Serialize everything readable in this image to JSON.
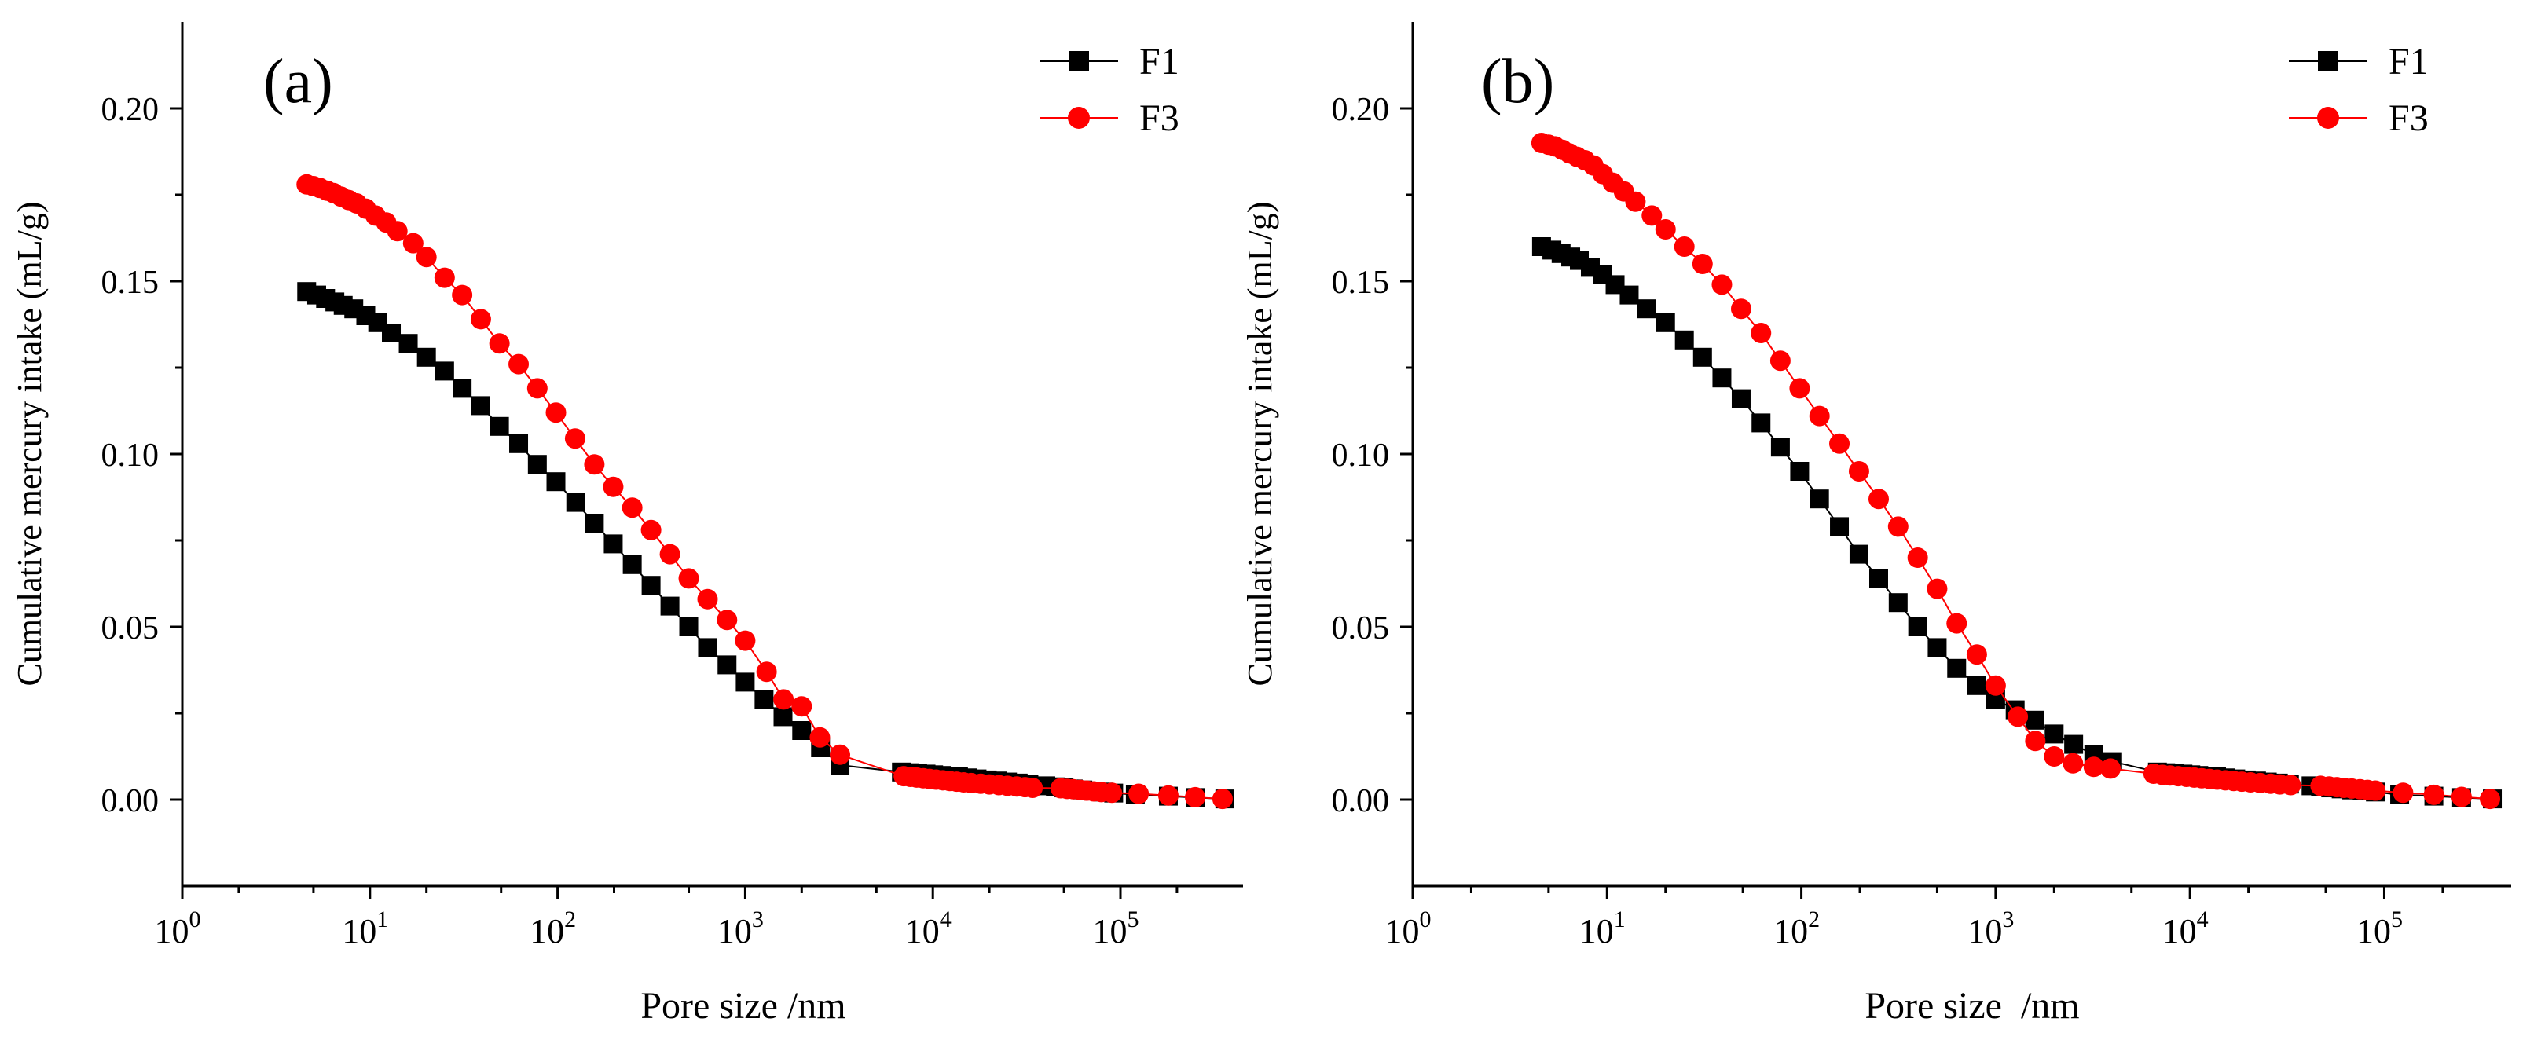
{
  "colors": {
    "F1": "#000000",
    "F3": "#ff0000",
    "axis": "#000000"
  },
  "chart_data": [
    {
      "type": "scatter",
      "panel_label": "(a)",
      "xlabel": "Pore size /nm",
      "ylabel": "Cumulative mercury intake (mL/g)",
      "xscale": "log",
      "xlim": [
        1,
        450000
      ],
      "ylim": [
        -0.025,
        0.225
      ],
      "yticks": [
        "0.00",
        "0.05",
        "0.10",
        "0.15",
        "0.20"
      ],
      "xticks": [
        {
          "base": "10",
          "exp": "0"
        },
        {
          "base": "10",
          "exp": "1"
        },
        {
          "base": "10",
          "exp": "2"
        },
        {
          "base": "10",
          "exp": "3"
        },
        {
          "base": "10",
          "exp": "4"
        },
        {
          "base": "10",
          "exp": "5"
        }
      ],
      "legend": {
        "position": "top-right",
        "entries": [
          "F1",
          "F3"
        ]
      },
      "series": [
        {
          "name": "F1",
          "x": [
            4.6,
            5.2,
            5.8,
            6.5,
            7.2,
            8.2,
            9.5,
            11,
            13,
            16,
            20,
            25,
            31,
            39,
            49,
            62,
            78,
            98,
            125,
            157,
            198,
            250,
            315,
            397,
            500,
            630,
            800,
            1000,
            1260,
            1590,
            2000,
            2520,
            3200,
            6800,
            7500,
            8300,
            9200,
            10100,
            11100,
            12300,
            13700,
            15300,
            17200,
            19500,
            22000,
            25000,
            28500,
            32500,
            40000,
            45000,
            50000,
            56000,
            63000,
            71000,
            81000,
            92000,
            120000,
            180000,
            250000,
            360000
          ],
          "values": [
            0.147,
            0.146,
            0.145,
            0.144,
            0.143,
            0.142,
            0.14,
            0.138,
            0.135,
            0.132,
            0.128,
            0.124,
            0.119,
            0.114,
            0.108,
            0.103,
            0.097,
            0.092,
            0.086,
            0.08,
            0.074,
            0.068,
            0.062,
            0.056,
            0.05,
            0.044,
            0.039,
            0.034,
            0.029,
            0.024,
            0.02,
            0.015,
            0.01,
            0.008,
            0.0078,
            0.0076,
            0.0074,
            0.0072,
            0.007,
            0.0068,
            0.0066,
            0.0063,
            0.006,
            0.0057,
            0.0054,
            0.0051,
            0.0048,
            0.0045,
            0.004,
            0.0037,
            0.0034,
            0.0031,
            0.0028,
            0.0025,
            0.0022,
            0.0019,
            0.0014,
            0.001,
            0.0006,
            0.0002
          ]
        },
        {
          "name": "F3",
          "x": [
            4.6,
            5.0,
            5.4,
            5.9,
            6.4,
            7.0,
            7.7,
            8.5,
            9.5,
            10.7,
            12.2,
            14,
            17,
            20,
            25,
            31,
            39,
            49,
            62,
            78,
            98,
            124,
            157,
            198,
            250,
            315,
            397,
            500,
            630,
            800,
            1000,
            1300,
            1600,
            2000,
            2500,
            3200,
            7000,
            7600,
            8200,
            8900,
            9600,
            10400,
            11300,
            12300,
            13400,
            14600,
            16000,
            18000,
            20000,
            22500,
            25000,
            28000,
            31000,
            34000,
            48000,
            52000,
            56000,
            61000,
            66000,
            72000,
            79000,
            90000,
            125000,
            180000,
            250000,
            350000
          ],
          "values": [
            0.178,
            0.1775,
            0.177,
            0.1762,
            0.1755,
            0.1745,
            0.1735,
            0.1725,
            0.171,
            0.169,
            0.167,
            0.1645,
            0.161,
            0.157,
            0.151,
            0.146,
            0.139,
            0.132,
            0.126,
            0.119,
            0.112,
            0.1045,
            0.097,
            0.0905,
            0.0845,
            0.078,
            0.071,
            0.064,
            0.058,
            0.052,
            0.046,
            0.037,
            0.029,
            0.027,
            0.018,
            0.013,
            0.0068,
            0.0066,
            0.0064,
            0.0062,
            0.006,
            0.0058,
            0.0056,
            0.0054,
            0.0052,
            0.005,
            0.0048,
            0.0046,
            0.0044,
            0.0042,
            0.004,
            0.0038,
            0.0036,
            0.0034,
            0.0033,
            0.0031,
            0.003,
            0.0028,
            0.0026,
            0.0024,
            0.0022,
            0.002,
            0.0017,
            0.0012,
            0.0007,
            0.0002
          ]
        }
      ]
    },
    {
      "type": "scatter",
      "panel_label": "(b)",
      "xlabel": "Pore size  /nm",
      "ylabel": "Cumulative mercury intake (mL/g)",
      "xscale": "log",
      "xlim": [
        1,
        450000
      ],
      "ylim": [
        -0.025,
        0.225
      ],
      "yticks": [
        "0.00",
        "0.05",
        "0.10",
        "0.15",
        "0.20"
      ],
      "xticks": [
        {
          "base": "10",
          "exp": "0"
        },
        {
          "base": "10",
          "exp": "1"
        },
        {
          "base": "10",
          "exp": "2"
        },
        {
          "base": "10",
          "exp": "3"
        },
        {
          "base": "10",
          "exp": "4"
        },
        {
          "base": "10",
          "exp": "5"
        }
      ],
      "legend": {
        "position": "top-right",
        "entries": [
          "F1",
          "F3"
        ]
      },
      "series": [
        {
          "name": "F1",
          "x": [
            4.6,
            5.2,
            5.8,
            6.5,
            7.2,
            8.2,
            9.5,
            11,
            13,
            16,
            20,
            25,
            31,
            39,
            49,
            62,
            78,
            98,
            124,
            157,
            198,
            250,
            315,
            397,
            500,
            630,
            800,
            1000,
            1260,
            1590,
            2000,
            2520,
            3200,
            4000,
            6800,
            7500,
            8300,
            9200,
            10100,
            11100,
            12300,
            13700,
            15300,
            17200,
            19500,
            22000,
            25000,
            28500,
            32500,
            42000,
            47000,
            53000,
            60000,
            68000,
            77000,
            90000,
            120000,
            180000,
            250000,
            360000
          ],
          "values": [
            0.16,
            0.159,
            0.158,
            0.157,
            0.156,
            0.154,
            0.152,
            0.149,
            0.146,
            0.142,
            0.138,
            0.133,
            0.128,
            0.122,
            0.116,
            0.109,
            0.102,
            0.095,
            0.087,
            0.079,
            0.071,
            0.064,
            0.057,
            0.05,
            0.044,
            0.038,
            0.033,
            0.029,
            0.026,
            0.023,
            0.019,
            0.016,
            0.013,
            0.011,
            0.008,
            0.0078,
            0.0076,
            0.0074,
            0.0072,
            0.007,
            0.0068,
            0.0066,
            0.0063,
            0.006,
            0.0057,
            0.0054,
            0.0051,
            0.0048,
            0.0045,
            0.004,
            0.0037,
            0.0034,
            0.0031,
            0.0028,
            0.0025,
            0.0022,
            0.0014,
            0.001,
            0.0006,
            0.0002
          ]
        },
        {
          "name": "F3",
          "x": [
            4.6,
            5.0,
            5.4,
            5.9,
            6.4,
            7.0,
            7.7,
            8.5,
            9.5,
            10.7,
            12.2,
            14,
            17,
            20,
            25,
            31,
            39,
            49,
            62,
            78,
            98,
            124,
            157,
            198,
            250,
            315,
            397,
            500,
            630,
            800,
            1000,
            1300,
            1600,
            2000,
            2500,
            3200,
            3900,
            6500,
            7200,
            7900,
            8700,
            9600,
            10500,
            11500,
            12600,
            13800,
            15200,
            16800,
            18500,
            20500,
            23000,
            26000,
            29000,
            33000,
            47000,
            52000,
            57000,
            62000,
            68000,
            75000,
            82000,
            90000,
            125000,
            180000,
            250000,
            350000
          ],
          "values": [
            0.19,
            0.1895,
            0.189,
            0.188,
            0.187,
            0.186,
            0.185,
            0.1835,
            0.181,
            0.1785,
            0.176,
            0.173,
            0.169,
            0.165,
            0.16,
            0.155,
            0.149,
            0.142,
            0.135,
            0.127,
            0.119,
            0.111,
            0.103,
            0.095,
            0.087,
            0.079,
            0.07,
            0.061,
            0.051,
            0.042,
            0.033,
            0.024,
            0.017,
            0.0125,
            0.0105,
            0.0095,
            0.009,
            0.0075,
            0.0072,
            0.007,
            0.0068,
            0.0066,
            0.0064,
            0.0062,
            0.006,
            0.0058,
            0.0056,
            0.0054,
            0.0052,
            0.005,
            0.0048,
            0.0046,
            0.0044,
            0.0042,
            0.004,
            0.0038,
            0.0036,
            0.0034,
            0.0032,
            0.003,
            0.0028,
            0.0026,
            0.002,
            0.0014,
            0.0008,
            0.0002
          ]
        }
      ]
    }
  ]
}
